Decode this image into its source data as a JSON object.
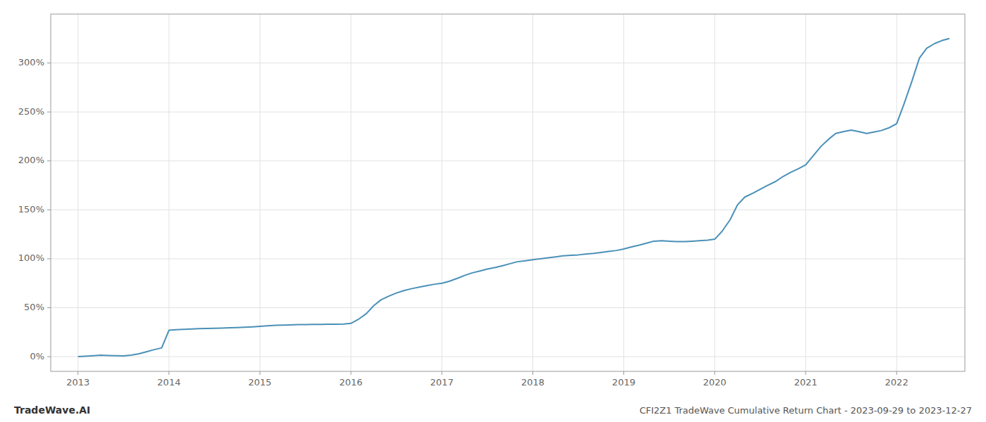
{
  "chart_data": {
    "type": "line",
    "title": "CFI2Z1 TradeWave Cumulative Return Chart - 2023-09-29 to 2023-12-27",
    "annotations": [
      "TradeWave.AI"
    ],
    "color": "#4a90b8",
    "grid": true,
    "x": [
      2013.0,
      2013.08,
      2013.17,
      2013.25,
      2013.33,
      2013.42,
      2013.5,
      2013.58,
      2013.67,
      2013.75,
      2013.83,
      2013.92,
      2014.0,
      2014.08,
      2014.17,
      2014.25,
      2014.33,
      2014.42,
      2014.5,
      2014.58,
      2014.67,
      2014.75,
      2014.83,
      2014.92,
      2015.0,
      2015.08,
      2015.17,
      2015.25,
      2015.33,
      2015.42,
      2015.5,
      2015.58,
      2015.67,
      2015.75,
      2015.83,
      2015.92,
      2016.0,
      2016.08,
      2016.17,
      2016.25,
      2016.33,
      2016.42,
      2016.5,
      2016.58,
      2016.67,
      2016.75,
      2016.83,
      2016.92,
      2017.0,
      2017.08,
      2017.17,
      2017.25,
      2017.33,
      2017.42,
      2017.5,
      2017.58,
      2017.67,
      2017.75,
      2017.83,
      2017.92,
      2018.0,
      2018.08,
      2018.17,
      2018.25,
      2018.33,
      2018.42,
      2018.5,
      2018.58,
      2018.67,
      2018.75,
      2018.83,
      2018.92,
      2019.0,
      2019.08,
      2019.17,
      2019.25,
      2019.33,
      2019.42,
      2019.5,
      2019.58,
      2019.67,
      2019.75,
      2019.83,
      2019.92,
      2020.0,
      2020.08,
      2020.17,
      2020.25,
      2020.33,
      2020.42,
      2020.5,
      2020.58,
      2020.67,
      2020.75,
      2020.83,
      2020.92,
      2021.0,
      2021.08,
      2021.17,
      2021.25,
      2021.33,
      2021.42,
      2021.5,
      2021.58,
      2021.67,
      2021.75,
      2021.83,
      2021.92,
      2022.0,
      2022.08,
      2022.17,
      2022.25,
      2022.33,
      2022.42,
      2022.5,
      2022.58
    ],
    "values": [
      0.0,
      0.5,
      1.0,
      1.5,
      1.2,
      1.0,
      0.8,
      1.5,
      3.0,
      5.0,
      7.0,
      9.0,
      27.0,
      27.5,
      28.0,
      28.3,
      28.6,
      28.8,
      29.0,
      29.2,
      29.5,
      29.7,
      30.0,
      30.5,
      31.0,
      31.5,
      32.0,
      32.3,
      32.5,
      32.7,
      32.8,
      32.9,
      33.0,
      33.1,
      33.2,
      33.3,
      34.0,
      38.0,
      44.0,
      52.0,
      58.0,
      62.0,
      65.0,
      67.5,
      69.5,
      71.0,
      72.5,
      74.0,
      75.0,
      77.0,
      80.0,
      83.0,
      85.5,
      87.5,
      89.5,
      91.0,
      93.0,
      95.0,
      97.0,
      98.0,
      99.0,
      100.0,
      101.0,
      102.0,
      103.0,
      103.5,
      104.0,
      104.8,
      105.5,
      106.5,
      107.5,
      108.5,
      110.0,
      112.0,
      114.0,
      116.0,
      118.0,
      118.5,
      118.0,
      117.5,
      117.5,
      118.0,
      118.5,
      119.0,
      120.0,
      128.0,
      140.0,
      155.0,
      163.0,
      167.0,
      171.0,
      175.0,
      179.0,
      184.0,
      188.0,
      192.0,
      196.0,
      205.0,
      215.0,
      222.0,
      228.0,
      230.0,
      231.5,
      230.0,
      228.0,
      229.5,
      231.0,
      234.0,
      238.0,
      258.0,
      282.0,
      305.0,
      315.0,
      320.0,
      323.0,
      325.0
    ],
    "xlim": [
      2012.7,
      2022.75
    ],
    "xticks": [
      2013,
      2014,
      2015,
      2016,
      2017,
      2018,
      2019,
      2020,
      2021,
      2022
    ],
    "ylim": [
      -15,
      350
    ],
    "yticks": [
      {
        "value": 0,
        "label": "0%"
      },
      {
        "value": 50,
        "label": "50%"
      },
      {
        "value": 100,
        "label": "100%"
      },
      {
        "value": 150,
        "label": "150%"
      },
      {
        "value": 200,
        "label": "200%"
      },
      {
        "value": 250,
        "label": "250%"
      },
      {
        "value": 300,
        "label": "300%"
      }
    ]
  }
}
